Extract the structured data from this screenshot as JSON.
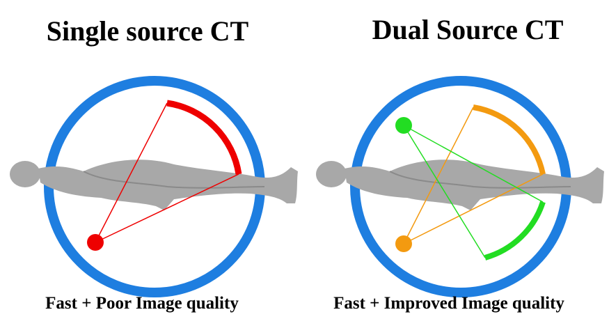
{
  "panels": [
    {
      "title": "Single source CT",
      "caption": "Fast + Poor Image quality"
    },
    {
      "title": "Dual Source CT",
      "caption": "Fast + Improved Image quality"
    }
  ]
}
